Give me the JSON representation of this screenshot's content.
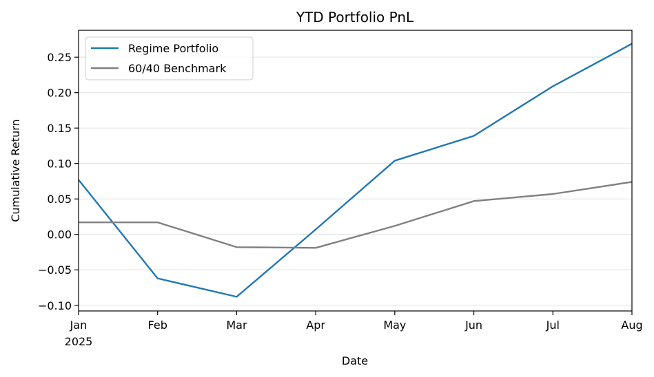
{
  "chart_data": {
    "type": "line",
    "title": "YTD Portfolio PnL",
    "xlabel": "Date",
    "ylabel": "Cumulative Return",
    "x": [
      "2025-01",
      "2025-02",
      "2025-03",
      "2025-04",
      "2025-05",
      "2025-06",
      "2025-07",
      "2025-08"
    ],
    "x_tick_labels": [
      "Jan",
      "Feb",
      "Mar",
      "Apr",
      "May",
      "Jun",
      "Jul",
      "Aug"
    ],
    "x_tick_sublabel": "2025",
    "ylim": [
      -0.108,
      0.288
    ],
    "y_ticks": [
      -0.1,
      -0.05,
      0.0,
      0.05,
      0.1,
      0.15,
      0.2,
      0.25
    ],
    "y_tick_labels": [
      "−0.10",
      "−0.05",
      "0.00",
      "0.05",
      "0.10",
      "0.15",
      "0.20",
      "0.25"
    ],
    "grid": "y",
    "legend_position": "top-left",
    "series": [
      {
        "name": "Regime Portfolio",
        "color": "#1f77b4",
        "values": [
          0.077,
          -0.062,
          -0.088,
          0.007,
          0.104,
          0.139,
          0.209,
          0.269
        ]
      },
      {
        "name": "60/40 Benchmark",
        "color": "#808080",
        "values": [
          0.017,
          0.017,
          -0.018,
          -0.019,
          0.012,
          0.047,
          0.057,
          0.074
        ]
      }
    ]
  }
}
